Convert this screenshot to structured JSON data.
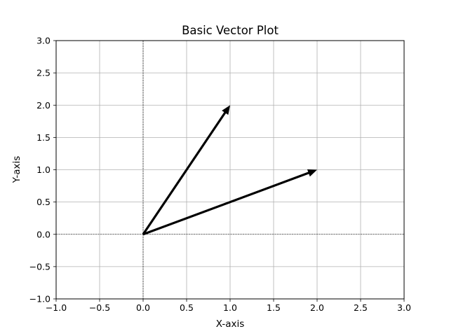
{
  "chart_data": {
    "type": "vector",
    "title": "Basic Vector Plot",
    "xlabel": "X-axis",
    "ylabel": "Y-axis",
    "xlim": [
      -1.0,
      3.0
    ],
    "ylim": [
      -1.0,
      3.0
    ],
    "xticks": [
      -1.0,
      -0.5,
      0.0,
      0.5,
      1.0,
      1.5,
      2.0,
      2.5,
      3.0
    ],
    "yticks": [
      -1.0,
      -0.5,
      0.0,
      0.5,
      1.0,
      1.5,
      2.0,
      2.5,
      3.0
    ],
    "xtick_labels": [
      "−1.0",
      "−0.5",
      "0.0",
      "0.5",
      "1.0",
      "1.5",
      "2.0",
      "2.5",
      "3.0"
    ],
    "ytick_labels": [
      "−1.0",
      "−0.5",
      "0.0",
      "0.5",
      "1.0",
      "1.5",
      "2.0",
      "2.5",
      "3.0"
    ],
    "grid": true,
    "origin_lines": true,
    "vectors": [
      {
        "x0": 0,
        "y0": 0,
        "dx": 1,
        "dy": 2,
        "color": "#000000"
      },
      {
        "x0": 0,
        "y0": 0,
        "dx": 2,
        "dy": 1,
        "color": "#000000"
      }
    ]
  }
}
